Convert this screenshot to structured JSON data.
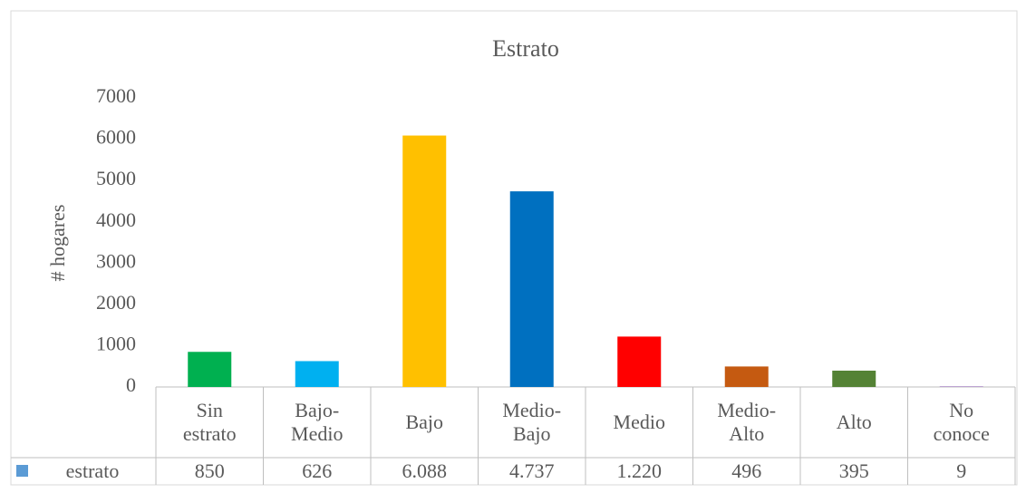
{
  "chart_data": {
    "type": "bar",
    "title": "Estrato",
    "y_label": "# hogares",
    "categories": [
      "Sin estrato",
      "Bajo-Medio",
      "Bajo",
      "Medio-Bajo",
      "Medio",
      "Medio-Alto",
      "Alto",
      "No conoce"
    ],
    "series": [
      {
        "name": "estrato",
        "color": "#5b9bd5",
        "values": [
          850,
          626,
          6088,
          4737,
          1220,
          496,
          395,
          9
        ],
        "value_labels": [
          "850",
          "626",
          "6.088",
          "4.737",
          "1.220",
          "496",
          "395",
          "9"
        ]
      }
    ],
    "colors": [
      "#00b050",
      "#00b0f0",
      "#ffc000",
      "#0070c0",
      "#ff0000",
      "#c55a11",
      "#548235",
      "#7030a0"
    ],
    "ylim": [
      0,
      7000
    ],
    "yticks": [
      0,
      1000,
      2000,
      3000,
      4000,
      5000,
      6000,
      7000
    ],
    "grid": false
  }
}
